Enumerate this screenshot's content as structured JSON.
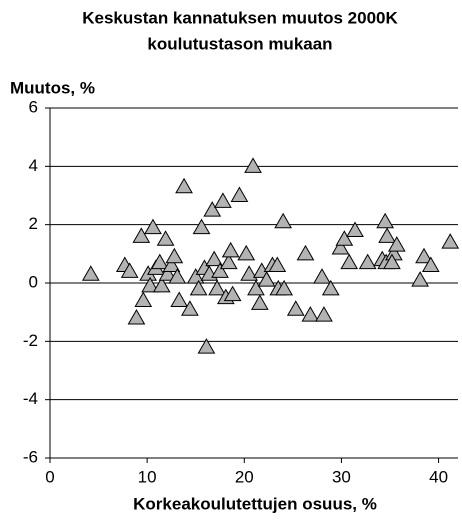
{
  "chart_data": {
    "type": "scatter",
    "title": [
      "Keskustan  kannatuksen muutos 2000K",
      "koulutustason mukaan"
    ],
    "y_label": "Muutos, %",
    "x_label": "Korkeakoulutettujen osuus, %",
    "xlim": [
      0,
      42
    ],
    "xticks": [
      0,
      10,
      20,
      30,
      40
    ],
    "ylim": [
      -6,
      6
    ],
    "yticks": [
      -6,
      -4,
      -2,
      0,
      2,
      4,
      6
    ],
    "grid": true,
    "marker": "triangle",
    "color": "#b3b3b3",
    "x": [
      4.2,
      7.7,
      8.2,
      8.9,
      9.4,
      9.6,
      10.1,
      10.3,
      10.6,
      10.9,
      11.3,
      11.5,
      11.9,
      12.1,
      12.5,
      12.8,
      13.1,
      13.3,
      13.8,
      14.4,
      15.0,
      15.3,
      15.6,
      15.9,
      16.1,
      16.4,
      16.7,
      16.9,
      17.2,
      17.5,
      17.8,
      18.1,
      18.4,
      18.6,
      18.8,
      19.5,
      20.2,
      20.5,
      20.9,
      21.2,
      21.6,
      21.8,
      22.3,
      22.9,
      23.4,
      23.5,
      24.0,
      24.1,
      25.3,
      26.3,
      26.8,
      28.2,
      28.0,
      28.9,
      29.9,
      30.3,
      30.8,
      31.4,
      32.7,
      34.2,
      34.5,
      34.6,
      34.7,
      35.4,
      35.7,
      35.2,
      38.1,
      38.5,
      39.2,
      41.2
    ],
    "y": [
      0.3,
      0.6,
      0.4,
      -1.2,
      1.6,
      -0.6,
      0.3,
      -0.1,
      1.9,
      0.5,
      0.7,
      -0.1,
      1.5,
      0.3,
      0.6,
      0.9,
      0.2,
      -0.6,
      3.3,
      -0.9,
      0.2,
      -0.2,
      1.9,
      0.5,
      -2.2,
      0.3,
      2.5,
      0.8,
      -0.2,
      0.4,
      2.8,
      -0.5,
      0.7,
      1.1,
      -0.4,
      3.0,
      1.0,
      0.3,
      4.0,
      -0.2,
      -0.7,
      0.4,
      0.1,
      0.6,
      0.6,
      -0.2,
      2.1,
      -0.2,
      -0.9,
      1.0,
      -1.1,
      -1.1,
      0.2,
      -0.2,
      1.2,
      1.5,
      0.7,
      1.8,
      0.7,
      0.8,
      2.1,
      0.7,
      1.6,
      1.0,
      1.3,
      0.7,
      0.1,
      0.9,
      0.6,
      1.4
    ]
  }
}
